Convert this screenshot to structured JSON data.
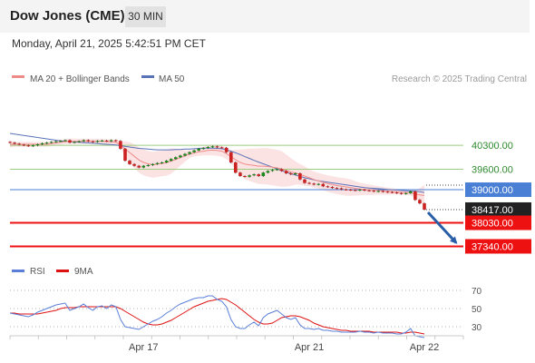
{
  "header": {
    "title": "Dow Jones (CME)",
    "interval": "30 MIN"
  },
  "timestamp": "Monday, April 21, 2025 5:42:51 PM CET",
  "credit": "Research © 2025 Trading Central",
  "colors": {
    "level_green": "#9ccc7f",
    "level_blue": "#4a7fd6",
    "level_red": "#ee1111",
    "ma20": "#ef8a8a",
    "ma50": "#5a72b8",
    "bollinger": "#fbdcdc",
    "candle_up": "#1a8a1a",
    "candle_down": "#cc2222",
    "rsi": "#5b7fd8",
    "rsi_ma": "#dd1111",
    "arrow": "#2a5fa8",
    "current_box": "#222222"
  },
  "chart_data": [
    {
      "type": "candlestick",
      "legend": [
        {
          "name": "MA 20 + Bollinger Bands",
          "color": "#ef8a8a"
        },
        {
          "name": "MA 50",
          "color": "#5a72b8"
        }
      ],
      "ylim": [
        36980,
        41900
      ],
      "x_ticks": [
        {
          "label": "Apr 17",
          "i": 29
        },
        {
          "label": "Apr 21",
          "i": 65
        },
        {
          "label": "Apr 22",
          "i": 90
        }
      ],
      "levels": [
        {
          "label": "40300.00",
          "value": 40300,
          "kind": "resistance"
        },
        {
          "label": "39600.00",
          "value": 39600,
          "kind": "resistance"
        },
        {
          "label": "39000.00",
          "value": 39000,
          "kind": "pivot"
        },
        {
          "label": "38417.00",
          "value": 38417,
          "kind": "current"
        },
        {
          "label": "38030.00",
          "value": 38030,
          "kind": "support"
        },
        {
          "label": "37340.00",
          "value": 37340,
          "kind": "support"
        }
      ],
      "arrow": {
        "from_value": 38417,
        "to_value": 37340
      },
      "close": [
        40380,
        40350,
        40320,
        40300,
        40280,
        40300,
        40330,
        40360,
        40380,
        40400,
        40420,
        40430,
        40450,
        40380,
        40400,
        40420,
        40450,
        40420,
        40400,
        40430,
        40440,
        40420,
        40450,
        40430,
        40200,
        39850,
        39750,
        39700,
        39650,
        39700,
        39720,
        39750,
        39780,
        39800,
        39850,
        39900,
        39950,
        40000,
        40050,
        40100,
        40150,
        40200,
        40220,
        40250,
        40270,
        40240,
        40230,
        40100,
        39800,
        39500,
        39400,
        39380,
        39420,
        39450,
        39400,
        39500,
        39550,
        39580,
        39600,
        39550,
        39480,
        39450,
        39480,
        39300,
        39200,
        39180,
        39150,
        39170,
        39100,
        39080,
        39050,
        39040,
        39010,
        39000,
        38990,
        38980,
        39000,
        38980,
        38970,
        38950,
        38960,
        38940,
        38930,
        38920,
        38900,
        38880,
        38900,
        38950,
        38700,
        38600,
        38417
      ],
      "ma20": [
        40330,
        40330,
        40330,
        40330,
        40330,
        40330,
        40330,
        40330,
        40330,
        40350,
        40370,
        40390,
        40410,
        40420,
        40420,
        40420,
        40420,
        40420,
        40420,
        40420,
        40420,
        40410,
        40400,
        40390,
        40310,
        40200,
        40090,
        39980,
        39870,
        39800,
        39760,
        39730,
        39750,
        39770,
        39790,
        39840,
        39890,
        39940,
        39990,
        40040,
        40080,
        40110,
        40130,
        40150,
        40160,
        40150,
        40130,
        40060,
        39970,
        39880,
        39800,
        39750,
        39730,
        39710,
        39690,
        39690,
        39680,
        39660,
        39640,
        39610,
        39560,
        39520,
        39490,
        39450,
        39400,
        39350,
        39300,
        39260,
        39220,
        39180,
        39150,
        39120,
        39100,
        39080,
        39060,
        39040,
        39020,
        39010,
        39000,
        38990,
        38980,
        38970,
        38960,
        38950,
        38940,
        38930,
        38920,
        38910,
        38870,
        38850,
        38830
      ],
      "ma50": [
        40650,
        40630,
        40610,
        40590,
        40570,
        40550,
        40530,
        40510,
        40490,
        40470,
        40450,
        40430,
        40420,
        40410,
        40400,
        40390,
        40380,
        40370,
        40360,
        40350,
        40340,
        40330,
        40320,
        40310,
        40290,
        40270,
        40250,
        40230,
        40210,
        40200,
        40190,
        40180,
        40170,
        40170,
        40170,
        40170,
        40180,
        40180,
        40190,
        40190,
        40200,
        40210,
        40220,
        40220,
        40220,
        40210,
        40200,
        40170,
        40130,
        40080,
        40030,
        39970,
        39920,
        39860,
        39810,
        39760,
        39710,
        39660,
        39610,
        39560,
        39510,
        39470,
        39430,
        39390,
        39350,
        39320,
        39290,
        39260,
        39240,
        39220,
        39200,
        39180,
        39160,
        39140,
        39120,
        39100,
        39080,
        39060,
        39050,
        39040,
        39030,
        39020,
        39010,
        39000,
        38990,
        38980,
        38970,
        38960,
        38950,
        38940,
        38920
      ]
    },
    {
      "type": "line",
      "legend": [
        {
          "name": "RSI",
          "color": "#5b7fd8"
        },
        {
          "name": "9MA",
          "color": "#dd1111"
        }
      ],
      "ylim": [
        20,
        80
      ],
      "y_ticks": [
        70,
        50,
        30
      ],
      "series": [
        {
          "name": "RSI",
          "values": [
            45,
            44,
            43,
            42,
            41,
            43,
            46,
            48,
            50,
            52,
            54,
            55,
            56,
            48,
            50,
            52,
            55,
            51,
            48,
            52,
            53,
            50,
            54,
            52,
            38,
            30,
            29,
            28,
            27,
            30,
            33,
            36,
            38,
            41,
            45,
            48,
            52,
            55,
            57,
            59,
            61,
            62,
            62,
            64,
            64,
            60,
            58,
            52,
            38,
            30,
            28,
            28,
            32,
            35,
            31,
            40,
            44,
            46,
            48,
            44,
            40,
            38,
            40,
            32,
            28,
            28,
            27,
            28,
            26,
            26,
            25,
            25,
            24,
            24,
            24,
            24,
            25,
            24,
            24,
            23,
            24,
            23,
            23,
            23,
            22,
            22,
            24,
            28,
            20,
            19,
            18
          ]
        },
        {
          "name": "9MA",
          "values": [
            45,
            45,
            44,
            44,
            44,
            44,
            44,
            45,
            46,
            47,
            48,
            50,
            51,
            51,
            51,
            52,
            52,
            52,
            52,
            52,
            52,
            52,
            52,
            52,
            50,
            47,
            44,
            41,
            38,
            35,
            33,
            32,
            32,
            33,
            35,
            37,
            40,
            43,
            46,
            49,
            52,
            54,
            56,
            58,
            59,
            60,
            61,
            60,
            57,
            54,
            50,
            46,
            42,
            38,
            35,
            33,
            33,
            34,
            37,
            40,
            41,
            42,
            42,
            41,
            39,
            37,
            34,
            32,
            30,
            29,
            28,
            27,
            26,
            26,
            25,
            25,
            25,
            25,
            25,
            24,
            24,
            24,
            24,
            24,
            24,
            23,
            23,
            24,
            24,
            23,
            22
          ]
        }
      ]
    }
  ]
}
